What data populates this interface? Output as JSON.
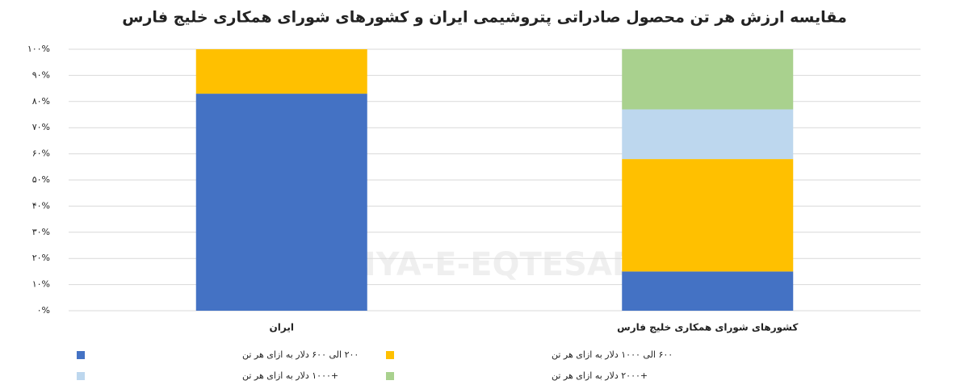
{
  "chart_data": {
    "type": "stacked_bar_100",
    "title": "مقایسه ارزش هر تن محصول صادراتی پتروشیمی ایران و کشورهای شورای همکاری خلیج فارس",
    "watermark": "DONYA-E-EQTESAD",
    "categories": [
      "ایران",
      "کشورهای شورای همکاری خلیج فارس"
    ],
    "series": [
      {
        "name": "۲۰۰ الی ۶۰۰ دلار به ازای هر تن",
        "color": "#4472c4",
        "values": [
          83,
          15
        ]
      },
      {
        "name": "۶۰۰ الی ۱۰۰۰ دلار به ازای هر تن",
        "color": "#ffc000",
        "values": [
          17,
          43
        ]
      },
      {
        "name": "+۱۰۰۰ دلار به ازای هر تن",
        "color": "#bdd7ee",
        "values": [
          0,
          19
        ]
      },
      {
        "name": "+۲۰۰۰ دلار به ازای هر تن",
        "color": "#a9d18e",
        "values": [
          0,
          23
        ]
      }
    ],
    "ylim": [
      0,
      100
    ],
    "yticks": [
      {
        "value": 0,
        "label": "۰%"
      },
      {
        "value": 10,
        "label": "۱۰%"
      },
      {
        "value": 20,
        "label": "۲۰%"
      },
      {
        "value": 30,
        "label": "۳۰%"
      },
      {
        "value": 40,
        "label": "۴۰%"
      },
      {
        "value": 50,
        "label": "۵۰%"
      },
      {
        "value": 60,
        "label": "۶۰%"
      },
      {
        "value": 70,
        "label": "۷۰%"
      },
      {
        "value": 80,
        "label": "۸۰%"
      },
      {
        "value": 90,
        "label": "۹۰%"
      },
      {
        "value": 100,
        "label": "۱۰۰%"
      }
    ],
    "grid": true
  }
}
